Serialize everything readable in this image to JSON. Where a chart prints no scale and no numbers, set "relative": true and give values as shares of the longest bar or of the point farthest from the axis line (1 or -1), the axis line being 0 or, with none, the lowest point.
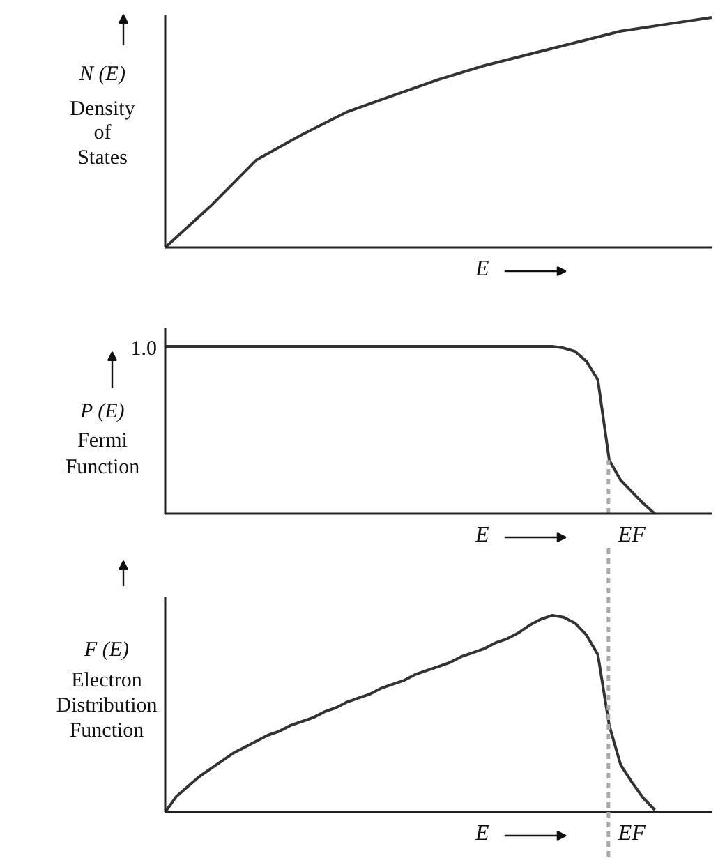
{
  "chart_data": [
    {
      "type": "line",
      "relative": true,
      "ylabel": "N (E)\nDensity\nof\nStates",
      "xlabel": "E",
      "color": "#333333",
      "categories": [
        null,
        null,
        null,
        null,
        null,
        null,
        null,
        null,
        null,
        null,
        null,
        null,
        null
      ],
      "values": [
        0,
        0.18,
        0.38,
        0.49,
        0.59,
        0.66,
        0.73,
        0.79,
        0.84,
        0.89,
        0.94,
        0.97,
        1.0
      ]
    },
    {
      "type": "line",
      "relative": true,
      "ylabel": "P (E)\nFermi\nFunction",
      "xlabel": "E",
      "color": "#333333",
      "annotations": [
        "1.0",
        "EF"
      ],
      "categories": [
        null,
        null,
        null,
        null,
        null,
        null,
        null,
        null,
        null,
        null,
        null,
        null,
        null,
        null,
        null,
        null,
        null,
        null,
        null,
        null,
        null,
        null,
        null,
        null,
        null,
        null,
        null,
        null,
        null,
        null,
        null,
        null,
        null,
        null,
        null,
        null,
        null,
        null,
        null,
        null,
        null,
        null,
        null,
        null,
        null,
        null,
        null,
        null,
        null
      ],
      "values": [
        1,
        1,
        1,
        1,
        1,
        1,
        1,
        1,
        1,
        1,
        1,
        1,
        1,
        1,
        1,
        1,
        1,
        1,
        1,
        1,
        1,
        1,
        1,
        1,
        1,
        1,
        1,
        1,
        1,
        1,
        1,
        1,
        1,
        1,
        1,
        0.99,
        0.97,
        0.91,
        0.8,
        0.32,
        0.2,
        0.13,
        0.06,
        0,
        null,
        null,
        null,
        null,
        null
      ]
    },
    {
      "type": "line",
      "relative": true,
      "ylabel": "F (E)\nElectron\nDistribution\nFunction",
      "xlabel": "E",
      "color": "#333333",
      "annotations": [
        "EF"
      ],
      "categories": [
        null,
        null,
        null,
        null,
        null,
        null,
        null,
        null,
        null,
        null,
        null,
        null,
        null,
        null,
        null,
        null,
        null,
        null,
        null,
        null,
        null,
        null,
        null,
        null,
        null,
        null,
        null,
        null,
        null,
        null,
        null,
        null,
        null,
        null,
        null,
        null,
        null,
        null,
        null,
        null,
        null,
        null,
        null,
        null,
        null,
        null,
        null,
        null,
        null
      ],
      "values": [
        0,
        0.08,
        0.13,
        0.18,
        0.22,
        0.26,
        0.3,
        0.33,
        0.36,
        0.39,
        0.41,
        0.44,
        0.46,
        0.48,
        0.51,
        0.53,
        0.56,
        0.58,
        0.6,
        0.63,
        0.65,
        0.67,
        0.7,
        0.72,
        0.74,
        0.76,
        0.79,
        0.81,
        0.83,
        0.86,
        0.88,
        0.91,
        0.95,
        0.98,
        1.0,
        0.99,
        0.96,
        0.9,
        0.8,
        0.44,
        0.24,
        0.15,
        0.07,
        0.01,
        null,
        null,
        null,
        null,
        null
      ]
    }
  ]
}
